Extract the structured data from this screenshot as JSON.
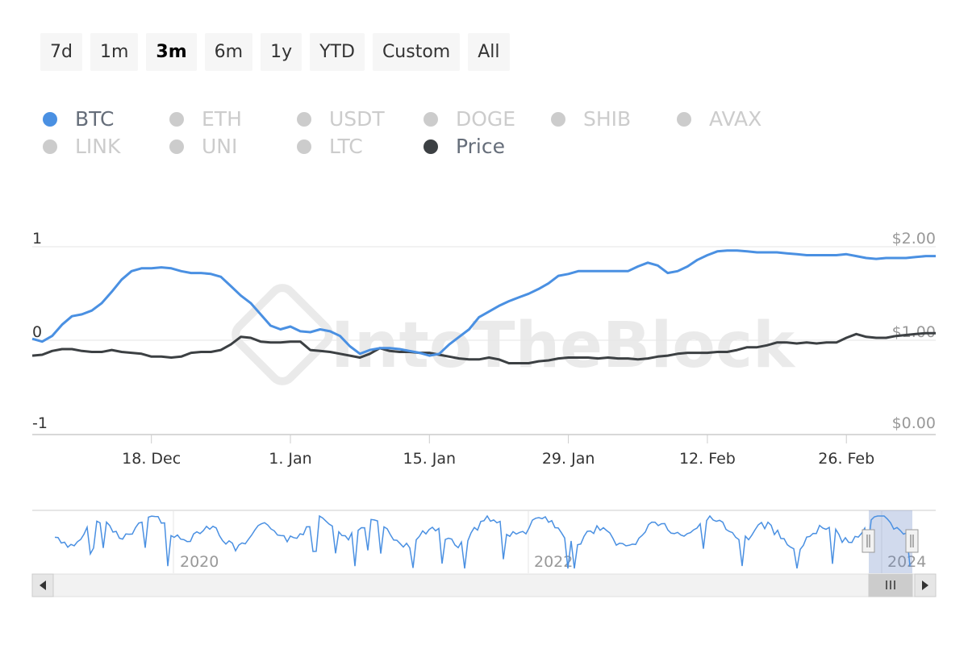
{
  "range_buttons": [
    {
      "label": "7d",
      "active": false
    },
    {
      "label": "1m",
      "active": false
    },
    {
      "label": "3m",
      "active": true
    },
    {
      "label": "6m",
      "active": false
    },
    {
      "label": "1y",
      "active": false
    },
    {
      "label": "YTD",
      "active": false
    },
    {
      "label": "Custom",
      "active": false
    },
    {
      "label": "All",
      "active": false
    }
  ],
  "watermark": "IntoTheBlock",
  "navigator": {
    "year_labels": [
      "2020",
      "2022",
      "2024"
    ],
    "scroll_left_icon": "triangle-left-icon",
    "scroll_right_icon": "triangle-right-icon",
    "scroll_thumb_icon": "grip-lines-icon",
    "handle_icon": "grip-lines-icon"
  },
  "chart_data": {
    "type": "line",
    "title": "",
    "legend": {
      "placement": "top-left",
      "entries": [
        {
          "name": "BTC",
          "active": true,
          "color": "#4a90e2"
        },
        {
          "name": "ETH",
          "active": false,
          "color": "#cccccc"
        },
        {
          "name": "USDT",
          "active": false,
          "color": "#cccccc"
        },
        {
          "name": "DOGE",
          "active": false,
          "color": "#cccccc"
        },
        {
          "name": "SHIB",
          "active": false,
          "color": "#cccccc"
        },
        {
          "name": "AVAX",
          "active": false,
          "color": "#cccccc"
        },
        {
          "name": "LINK",
          "active": false,
          "color": "#cccccc"
        },
        {
          "name": "UNI",
          "active": false,
          "color": "#cccccc"
        },
        {
          "name": "LTC",
          "active": false,
          "color": "#cccccc"
        },
        {
          "name": "Price",
          "active": true,
          "color": "#3c4043"
        }
      ]
    },
    "x_ticks": [
      "18. Dec",
      "1. Jan",
      "15. Jan",
      "29. Jan",
      "12. Feb",
      "26. Feb"
    ],
    "x_range": [
      "2023-12-06",
      "2024-03-06"
    ],
    "y_left": {
      "ticks": [
        "1",
        "0",
        "-1"
      ],
      "range": [
        -1,
        1
      ]
    },
    "y_right": {
      "ticks": [
        "$2.00",
        "$1.00",
        "$0.00"
      ],
      "range": [
        0,
        2
      ]
    },
    "grid": true,
    "series": [
      {
        "name": "BTC",
        "axis": "left",
        "color": "#4a90e2",
        "dates": [
          "2023-12-06",
          "2023-12-07",
          "2023-12-08",
          "2023-12-09",
          "2023-12-10",
          "2023-12-11",
          "2023-12-12",
          "2023-12-13",
          "2023-12-14",
          "2023-12-15",
          "2023-12-16",
          "2023-12-17",
          "2023-12-18",
          "2023-12-19",
          "2023-12-20",
          "2023-12-21",
          "2023-12-22",
          "2023-12-23",
          "2023-12-24",
          "2023-12-25",
          "2023-12-26",
          "2023-12-27",
          "2023-12-28",
          "2023-12-29",
          "2023-12-30",
          "2023-12-31",
          "2024-01-01",
          "2024-01-02",
          "2024-01-03",
          "2024-01-04",
          "2024-01-05",
          "2024-01-06",
          "2024-01-07",
          "2024-01-08",
          "2024-01-09",
          "2024-01-10",
          "2024-01-11",
          "2024-01-12",
          "2024-01-13",
          "2024-01-14",
          "2024-01-15",
          "2024-01-16",
          "2024-01-17",
          "2024-01-18",
          "2024-01-19",
          "2024-01-20",
          "2024-01-21",
          "2024-01-22",
          "2024-01-23",
          "2024-01-24",
          "2024-01-25",
          "2024-01-26",
          "2024-01-27",
          "2024-01-28",
          "2024-01-29",
          "2024-01-30",
          "2024-01-31",
          "2024-02-01",
          "2024-02-02",
          "2024-02-03",
          "2024-02-04",
          "2024-02-05",
          "2024-02-06",
          "2024-02-07",
          "2024-02-08",
          "2024-02-09",
          "2024-02-10",
          "2024-02-11",
          "2024-02-12",
          "2024-02-13",
          "2024-02-14",
          "2024-02-15",
          "2024-02-16",
          "2024-02-17",
          "2024-02-18",
          "2024-02-19",
          "2024-02-20",
          "2024-02-21",
          "2024-02-22",
          "2024-02-23",
          "2024-02-24",
          "2024-02-25",
          "2024-02-26",
          "2024-02-27",
          "2024-02-28",
          "2024-02-29",
          "2024-03-01",
          "2024-03-02",
          "2024-03-03",
          "2024-03-04",
          "2024-03-05",
          "2024-03-06"
        ],
        "values": [
          0.02,
          -0.01,
          0.05,
          0.17,
          0.26,
          0.28,
          0.32,
          0.4,
          0.52,
          0.65,
          0.74,
          0.77,
          0.77,
          0.78,
          0.77,
          0.74,
          0.72,
          0.72,
          0.71,
          0.68,
          0.58,
          0.48,
          0.4,
          0.28,
          0.16,
          0.12,
          0.15,
          0.1,
          0.09,
          0.12,
          0.1,
          0.05,
          -0.06,
          -0.14,
          -0.1,
          -0.08,
          -0.08,
          -0.09,
          -0.11,
          -0.13,
          -0.16,
          -0.14,
          -0.04,
          0.04,
          0.12,
          0.25,
          0.31,
          0.37,
          0.42,
          0.46,
          0.5,
          0.55,
          0.61,
          0.69,
          0.71,
          0.74,
          0.74,
          0.74,
          0.74,
          0.74,
          0.74,
          0.79,
          0.83,
          0.8,
          0.72,
          0.74,
          0.79,
          0.86,
          0.91,
          0.95,
          0.96,
          0.96,
          0.95,
          0.94,
          0.94,
          0.94,
          0.93,
          0.92,
          0.91,
          0.91,
          0.91,
          0.91,
          0.92,
          0.9,
          0.88,
          0.87,
          0.88,
          0.88,
          0.88,
          0.89,
          0.9,
          0.9
        ]
      },
      {
        "name": "Price",
        "axis": "right",
        "color": "#3c4043",
        "dates": [
          "2023-12-06",
          "2023-12-07",
          "2023-12-08",
          "2023-12-09",
          "2023-12-10",
          "2023-12-11",
          "2023-12-12",
          "2023-12-13",
          "2023-12-14",
          "2023-12-15",
          "2023-12-16",
          "2023-12-17",
          "2023-12-18",
          "2023-12-19",
          "2023-12-20",
          "2023-12-21",
          "2023-12-22",
          "2023-12-23",
          "2023-12-24",
          "2023-12-25",
          "2023-12-26",
          "2023-12-27",
          "2023-12-28",
          "2023-12-29",
          "2023-12-30",
          "2023-12-31",
          "2024-01-01",
          "2024-01-02",
          "2024-01-03",
          "2024-01-04",
          "2024-01-05",
          "2024-01-06",
          "2024-01-07",
          "2024-01-08",
          "2024-01-09",
          "2024-01-10",
          "2024-01-11",
          "2024-01-12",
          "2024-01-13",
          "2024-01-14",
          "2024-01-15",
          "2024-01-16",
          "2024-01-17",
          "2024-01-18",
          "2024-01-19",
          "2024-01-20",
          "2024-01-21",
          "2024-01-22",
          "2024-01-23",
          "2024-01-24",
          "2024-01-25",
          "2024-01-26",
          "2024-01-27",
          "2024-01-28",
          "2024-01-29",
          "2024-01-30",
          "2024-01-31",
          "2024-02-01",
          "2024-02-02",
          "2024-02-03",
          "2024-02-04",
          "2024-02-05",
          "2024-02-06",
          "2024-02-07",
          "2024-02-08",
          "2024-02-09",
          "2024-02-10",
          "2024-02-11",
          "2024-02-12",
          "2024-02-13",
          "2024-02-14",
          "2024-02-15",
          "2024-02-16",
          "2024-02-17",
          "2024-02-18",
          "2024-02-19",
          "2024-02-20",
          "2024-02-21",
          "2024-02-22",
          "2024-02-23",
          "2024-02-24",
          "2024-02-25",
          "2024-02-26",
          "2024-02-27",
          "2024-02-28",
          "2024-02-29",
          "2024-03-01",
          "2024-03-02",
          "2024-03-03",
          "2024-03-04",
          "2024-03-05",
          "2024-03-06"
        ],
        "values": [
          0.84,
          0.85,
          0.89,
          0.91,
          0.91,
          0.89,
          0.88,
          0.88,
          0.9,
          0.88,
          0.87,
          0.86,
          0.83,
          0.83,
          0.82,
          0.83,
          0.87,
          0.88,
          0.88,
          0.9,
          0.96,
          1.04,
          1.03,
          0.99,
          0.98,
          0.98,
          0.99,
          0.99,
          0.9,
          0.89,
          0.88,
          0.86,
          0.84,
          0.82,
          0.86,
          0.92,
          0.89,
          0.88,
          0.88,
          0.87,
          0.87,
          0.85,
          0.83,
          0.81,
          0.8,
          0.8,
          0.82,
          0.8,
          0.76,
          0.76,
          0.76,
          0.78,
          0.79,
          0.81,
          0.82,
          0.82,
          0.82,
          0.81,
          0.82,
          0.81,
          0.81,
          0.8,
          0.81,
          0.83,
          0.84,
          0.86,
          0.87,
          0.87,
          0.87,
          0.88,
          0.88,
          0.9,
          0.93,
          0.93,
          0.95,
          0.98,
          0.98,
          0.97,
          0.98,
          0.97,
          0.98,
          0.98,
          1.03,
          1.07,
          1.04,
          1.03,
          1.03,
          1.05,
          1.06,
          1.07,
          1.08,
          1.08
        ]
      }
    ]
  }
}
